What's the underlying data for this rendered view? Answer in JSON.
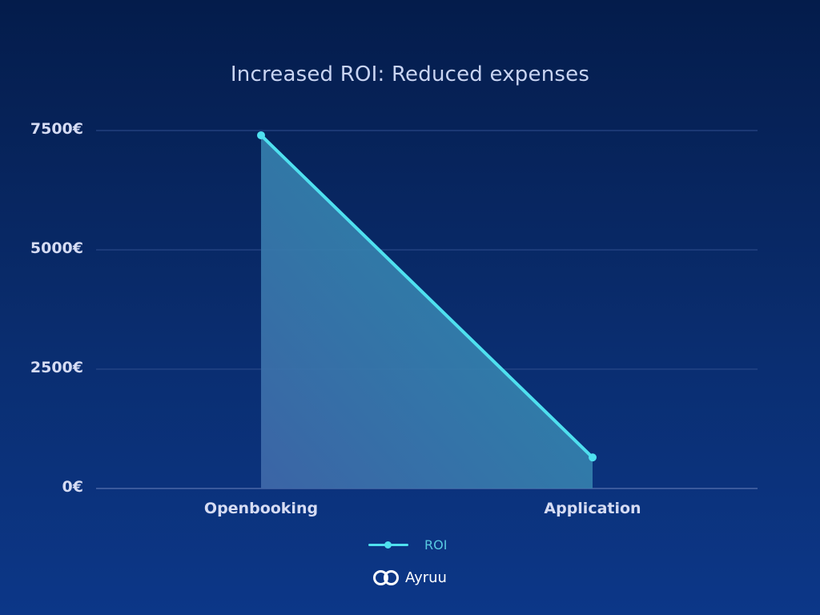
{
  "chart_data": {
    "type": "area",
    "title": "Increased ROI: Reduced expenses",
    "categories": [
      "Openbooking",
      "Application"
    ],
    "series": [
      {
        "name": "ROI",
        "values": [
          7400,
          650
        ]
      }
    ],
    "y_ticks": [
      "0€",
      "2500€",
      "5000€",
      "7500€"
    ],
    "ylim": [
      0,
      7500
    ],
    "grid": true,
    "legend_position": "bottom-center",
    "colors": {
      "line": "#4fe0ef",
      "fill": "#3b8fb5",
      "grid": "#2f4e8f"
    }
  },
  "brand": {
    "name": "Ayruu",
    "logo_icon": "infinity-rings-icon"
  }
}
